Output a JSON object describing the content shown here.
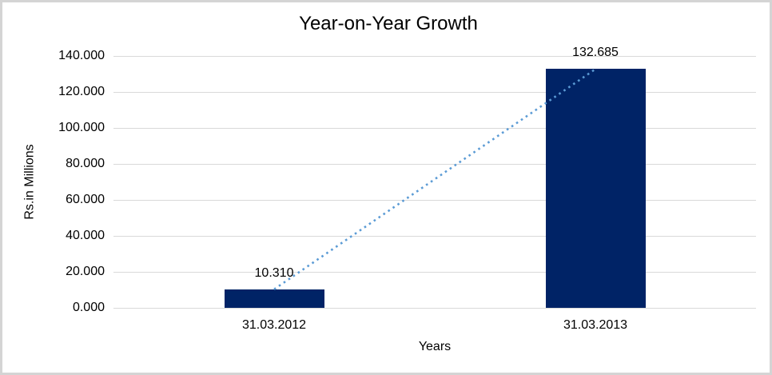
{
  "chart_data": {
    "type": "bar",
    "title": "Year-on-Year Growth",
    "categories": [
      "31.03.2012",
      "31.03.2013"
    ],
    "values": [
      10.31,
      132.685
    ],
    "data_labels": [
      "10.310",
      "132.685"
    ],
    "xlabel": "Years",
    "ylabel": "Rs.in Millions",
    "ylim": [
      0,
      140
    ],
    "yticks": [
      0,
      20,
      40,
      60,
      80,
      100,
      120,
      140
    ],
    "ytick_labels": [
      "0.000",
      "20.000",
      "40.000",
      "60.000",
      "80.000",
      "100.000",
      "120.000",
      "140.000"
    ],
    "grid": true,
    "legend": "none",
    "trendline": {
      "style": "dotted",
      "connects": [
        "31.03.2012",
        "31.03.2013"
      ]
    },
    "colors": {
      "bar": "#002366",
      "gridline": "#d9d9d9",
      "axis_line": "#d9d9d9",
      "trendline": "#5b9bd5",
      "text": "#000000",
      "frame_border": "#d4d4d4",
      "background": "#ffffff"
    }
  }
}
